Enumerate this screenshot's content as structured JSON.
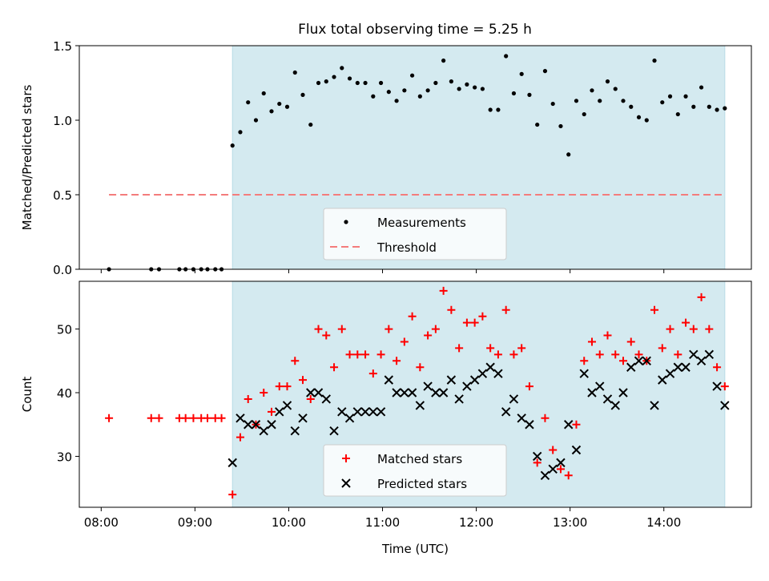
{
  "title": "Flux total observing time = 5.25 h",
  "colors": {
    "shade": "#d4eaf0",
    "measurement": "#000000",
    "threshold": "#f47c7c",
    "matched": "#ff0000",
    "predicted": "#000000"
  },
  "chart_data": [
    {
      "type": "scatter",
      "ylabel": "Matched/Predicted stars",
      "ylim": [
        0,
        1.5
      ],
      "yticks": [
        "0.0",
        "0.5",
        "1.0",
        "1.5"
      ],
      "xlim": [
        "07:46",
        "14:56"
      ],
      "shaded_region": [
        "09:24",
        "14:39"
      ],
      "legend": {
        "placement": "lower-center",
        "entries": [
          "Measurements",
          "Threshold"
        ]
      },
      "threshold": {
        "name": "Threshold",
        "value": 0.5,
        "x_range": [
          "08:05",
          "14:37"
        ]
      },
      "series": [
        {
          "name": "Measurements",
          "x": [
            "08:05",
            "08:32",
            "08:37",
            "08:50",
            "08:54",
            "08:59",
            "09:04",
            "09:08",
            "09:13",
            "09:17",
            "09:24",
            "09:29",
            "09:34",
            "09:39",
            "09:44",
            "09:49",
            "09:54",
            "09:59",
            "10:04",
            "10:09",
            "10:14",
            "10:19",
            "10:24",
            "10:29",
            "10:34",
            "10:39",
            "10:44",
            "10:49",
            "10:54",
            "10:59",
            "11:04",
            "11:09",
            "11:14",
            "11:19",
            "11:24",
            "11:29",
            "11:34",
            "11:39",
            "11:44",
            "11:49",
            "11:54",
            "11:59",
            "12:04",
            "12:09",
            "12:14",
            "12:19",
            "12:24",
            "12:29",
            "12:34",
            "12:39",
            "12:44",
            "12:49",
            "12:54",
            "12:59",
            "13:04",
            "13:09",
            "13:14",
            "13:19",
            "13:24",
            "13:29",
            "13:34",
            "13:39",
            "13:44",
            "13:49",
            "13:54",
            "13:59",
            "14:04",
            "14:09",
            "14:14",
            "14:19",
            "14:24",
            "14:29",
            "14:34",
            "14:39"
          ],
          "y": [
            0,
            0,
            0,
            0,
            0,
            0,
            0,
            0,
            0,
            0,
            0.83,
            0.92,
            1.12,
            1.0,
            1.18,
            1.06,
            1.11,
            1.09,
            1.32,
            1.17,
            0.97,
            1.25,
            1.26,
            1.29,
            1.35,
            1.28,
            1.25,
            1.25,
            1.16,
            1.25,
            1.19,
            1.13,
            1.2,
            1.3,
            1.16,
            1.2,
            1.25,
            1.4,
            1.26,
            1.21,
            1.24,
            1.22,
            1.21,
            1.07,
            1.07,
            1.43,
            1.18,
            1.31,
            1.17,
            0.97,
            1.33,
            1.11,
            0.96,
            0.77,
            1.13,
            1.04,
            1.2,
            1.13,
            1.26,
            1.21,
            1.13,
            1.09,
            1.02,
            1.0,
            1.4,
            1.12,
            1.16,
            1.04,
            1.16,
            1.09,
            1.22,
            1.09,
            1.07,
            1.08
          ]
        }
      ]
    },
    {
      "type": "scatter",
      "xlabel": "Time (UTC)",
      "ylabel": "Count",
      "ylim": [
        22,
        57.5
      ],
      "yticks": [
        "30",
        "40",
        "50"
      ],
      "xticks": [
        "08:00",
        "09:00",
        "10:00",
        "11:00",
        "12:00",
        "13:00",
        "14:00"
      ],
      "xlim": [
        "07:46",
        "14:56"
      ],
      "shaded_region": [
        "09:24",
        "14:39"
      ],
      "legend": {
        "placement": "lower-center",
        "entries": [
          "Matched stars",
          "Predicted stars"
        ]
      },
      "series": [
        {
          "name": "Matched stars",
          "marker": "plus",
          "x": [
            "08:05",
            "08:32",
            "08:37",
            "08:50",
            "08:54",
            "08:59",
            "09:04",
            "09:08",
            "09:13",
            "09:17",
            "09:24",
            "09:29",
            "09:34",
            "09:39",
            "09:44",
            "09:49",
            "09:54",
            "09:59",
            "10:04",
            "10:09",
            "10:14",
            "10:19",
            "10:24",
            "10:29",
            "10:34",
            "10:39",
            "10:44",
            "10:49",
            "10:54",
            "10:59",
            "11:04",
            "11:09",
            "11:14",
            "11:19",
            "11:24",
            "11:29",
            "11:34",
            "11:39",
            "11:44",
            "11:49",
            "11:54",
            "11:59",
            "12:04",
            "12:09",
            "12:14",
            "12:19",
            "12:24",
            "12:29",
            "12:34",
            "12:39",
            "12:44",
            "12:49",
            "12:54",
            "12:59",
            "13:04",
            "13:09",
            "13:14",
            "13:19",
            "13:24",
            "13:29",
            "13:34",
            "13:39",
            "13:44",
            "13:49",
            "13:54",
            "13:59",
            "14:04",
            "14:09",
            "14:14",
            "14:19",
            "14:24",
            "14:29",
            "14:34",
            "14:39"
          ],
          "y": [
            36,
            36,
            36,
            36,
            36,
            36,
            36,
            36,
            36,
            36,
            24,
            33,
            39,
            35,
            40,
            37,
            41,
            41,
            45,
            42,
            39,
            50,
            49,
            44,
            50,
            46,
            46,
            46,
            43,
            46,
            50,
            45,
            48,
            52,
            44,
            49,
            50,
            56,
            53,
            47,
            51,
            51,
            52,
            47,
            46,
            53,
            46,
            47,
            41,
            29,
            36,
            31,
            28,
            27,
            35,
            45,
            48,
            46,
            49,
            46,
            45,
            48,
            46,
            45,
            53,
            47,
            50,
            46,
            51,
            50,
            55,
            50,
            44,
            41
          ]
        },
        {
          "name": "Predicted stars",
          "marker": "x",
          "x": [
            "09:24",
            "09:29",
            "09:34",
            "09:39",
            "09:44",
            "09:49",
            "09:54",
            "09:59",
            "10:04",
            "10:09",
            "10:14",
            "10:19",
            "10:24",
            "10:29",
            "10:34",
            "10:39",
            "10:44",
            "10:49",
            "10:54",
            "10:59",
            "11:04",
            "11:09",
            "11:14",
            "11:19",
            "11:24",
            "11:29",
            "11:34",
            "11:39",
            "11:44",
            "11:49",
            "11:54",
            "11:59",
            "12:04",
            "12:09",
            "12:14",
            "12:19",
            "12:24",
            "12:29",
            "12:34",
            "12:39",
            "12:44",
            "12:49",
            "12:54",
            "12:59",
            "13:04",
            "13:09",
            "13:14",
            "13:19",
            "13:24",
            "13:29",
            "13:34",
            "13:39",
            "13:44",
            "13:49",
            "13:54",
            "13:59",
            "14:04",
            "14:09",
            "14:14",
            "14:19",
            "14:24",
            "14:29",
            "14:34",
            "14:39"
          ],
          "y": [
            29,
            36,
            35,
            35,
            34,
            35,
            37,
            38,
            34,
            36,
            40,
            40,
            39,
            34,
            37,
            36,
            37,
            37,
            37,
            37,
            42,
            40,
            40,
            40,
            38,
            41,
            40,
            40,
            42,
            39,
            41,
            42,
            43,
            44,
            43,
            37,
            39,
            36,
            35,
            30,
            27,
            28,
            29,
            35,
            31,
            43,
            40,
            41,
            39,
            38,
            40,
            44,
            45,
            45,
            38,
            42,
            43,
            44,
            44,
            46,
            45,
            46,
            41,
            38
          ]
        }
      ]
    }
  ]
}
